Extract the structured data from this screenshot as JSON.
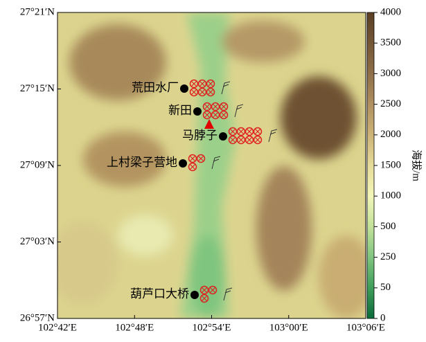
{
  "map": {
    "xticks": [
      "102°42′E",
      "102°48′E",
      "102°54′E",
      "103°00′E",
      "103°06′E"
    ],
    "yticks": [
      "27°21′N",
      "27°15′N",
      "27°09′N",
      "27°03′N",
      "26°57′N"
    ],
    "stations": [
      {
        "name": "荒田水厂"
      },
      {
        "name": "新田"
      },
      {
        "name": "马脖子"
      },
      {
        "name": "上村梁子营地"
      },
      {
        "name": "葫芦口大桥"
      }
    ],
    "colorbar": {
      "title": "海拔/m",
      "ticks": [
        0,
        50,
        250,
        500,
        1000,
        1500,
        2000,
        2500,
        3000,
        3500,
        4000
      ]
    }
  }
}
